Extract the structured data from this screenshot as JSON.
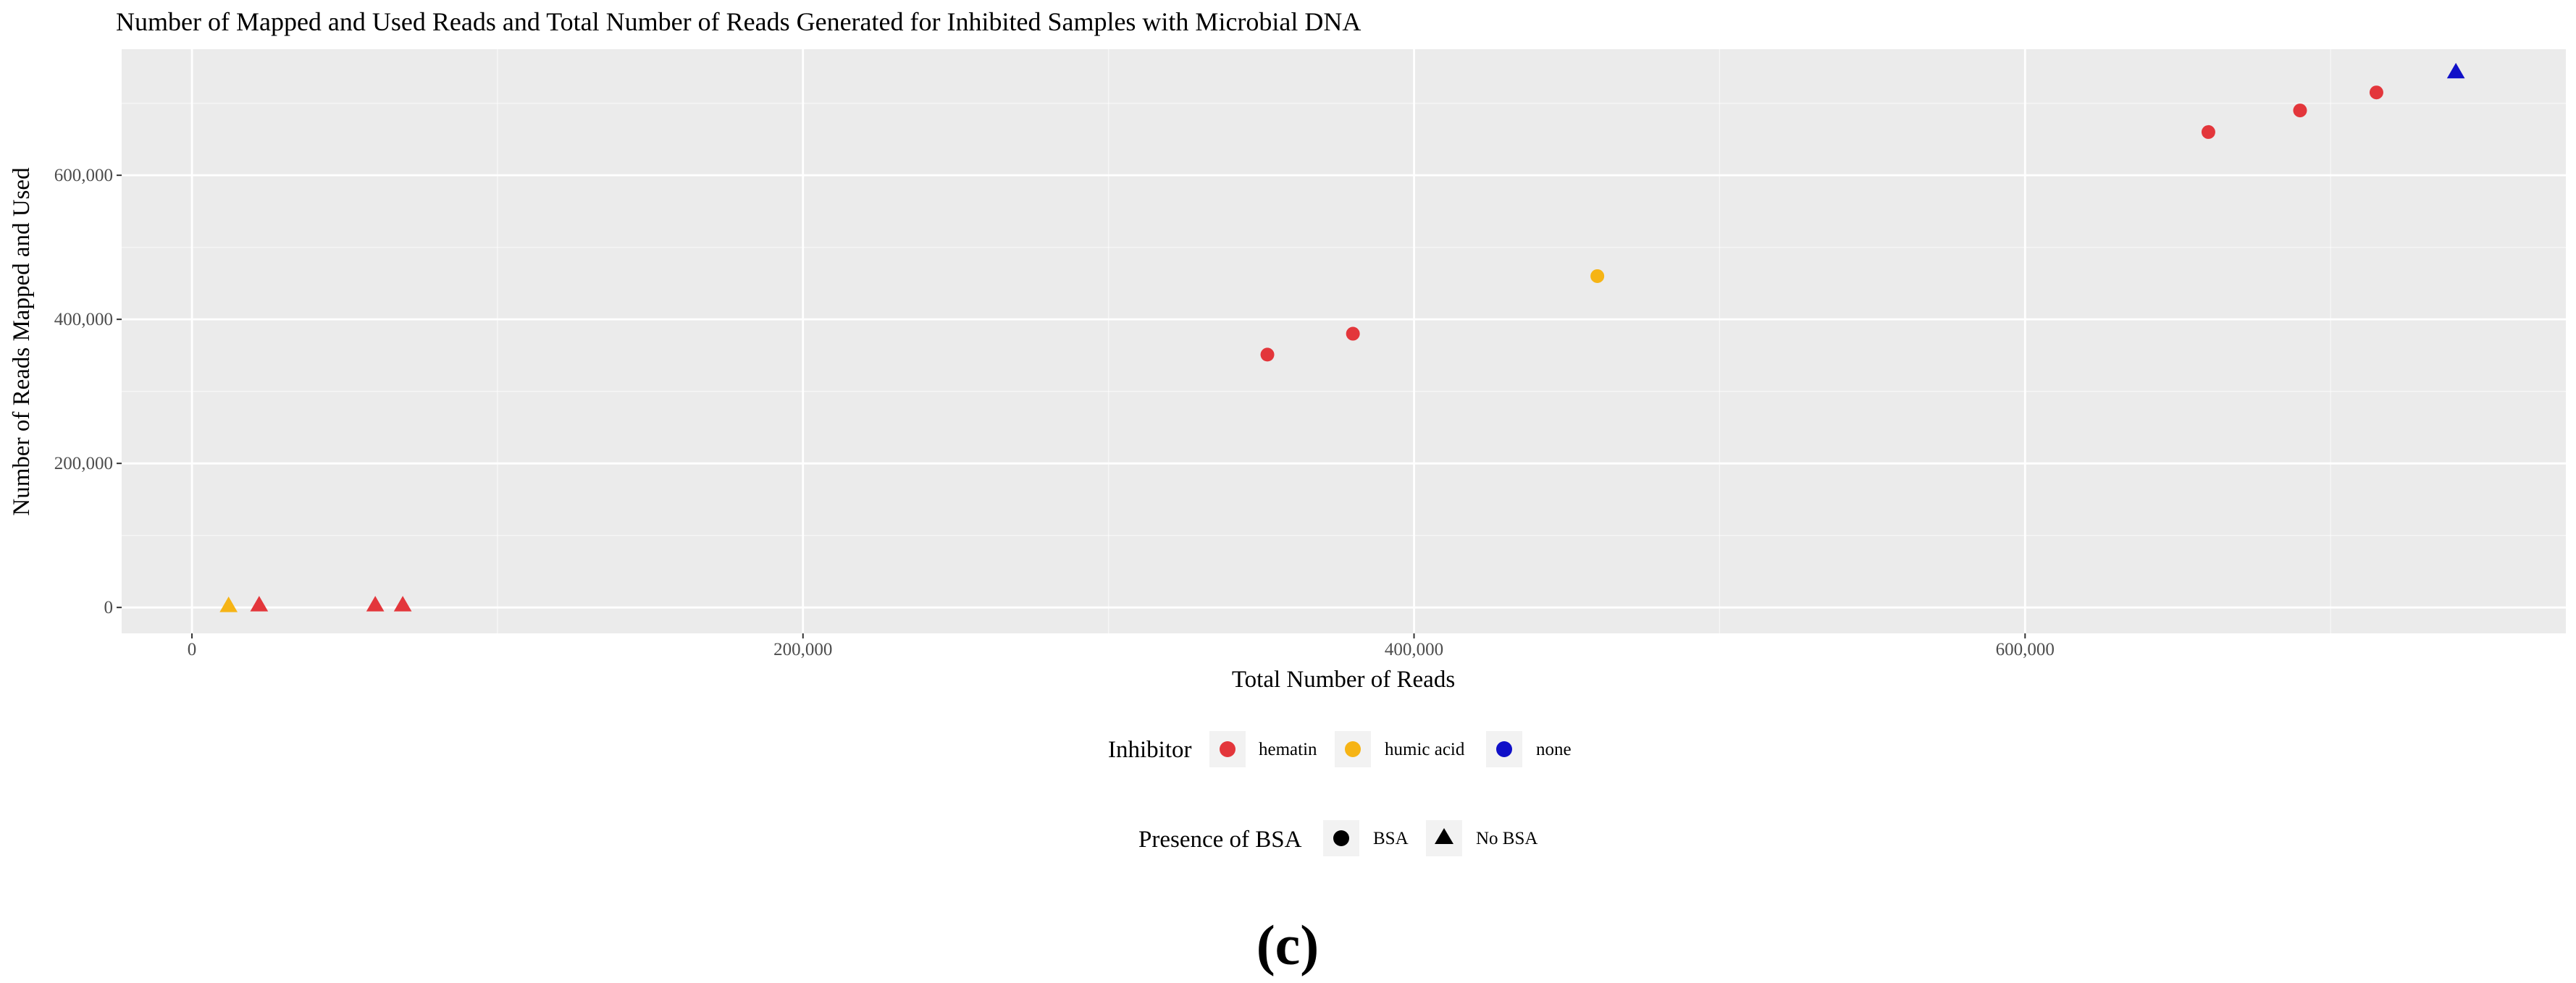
{
  "chart_data": {
    "type": "scatter",
    "title": "Number of Mapped and Used Reads and Total Number of Reads Generated for Inhibited Samples with Microbial DNA",
    "xlabel": "Total Number of Reads",
    "ylabel": "Number of Reads Mapped and Used",
    "xlim": [
      -23000,
      777000
    ],
    "ylim": [
      -36000,
      775000
    ],
    "x_ticks": [
      0,
      200000,
      400000,
      600000
    ],
    "x_tick_labels": [
      "0",
      "200,000",
      "400,000",
      "600,000"
    ],
    "y_ticks": [
      0,
      200000,
      400000,
      600000
    ],
    "y_tick_labels": [
      "0",
      "200,000",
      "400,000",
      "600,000"
    ],
    "x_minor_ticks": [
      100000,
      300000,
      500000,
      700000
    ],
    "y_minor_ticks": [
      100000,
      300000,
      500000,
      700000
    ],
    "grid": true,
    "points": [
      {
        "x": 12000,
        "y": 2000,
        "inhibitor": "humic acid",
        "bsa": "No BSA"
      },
      {
        "x": 22000,
        "y": 3000,
        "inhibitor": "hematin",
        "bsa": "No BSA"
      },
      {
        "x": 60000,
        "y": 3000,
        "inhibitor": "hematin",
        "bsa": "No BSA"
      },
      {
        "x": 69000,
        "y": 3000,
        "inhibitor": "hematin",
        "bsa": "No BSA"
      },
      {
        "x": 352000,
        "y": 351000,
        "inhibitor": "hematin",
        "bsa": "BSA"
      },
      {
        "x": 380000,
        "y": 380000,
        "inhibitor": "hematin",
        "bsa": "BSA"
      },
      {
        "x": 460000,
        "y": 460000,
        "inhibitor": "humic acid",
        "bsa": "BSA"
      },
      {
        "x": 660000,
        "y": 660000,
        "inhibitor": "hematin",
        "bsa": "BSA"
      },
      {
        "x": 690000,
        "y": 690000,
        "inhibitor": "hematin",
        "bsa": "BSA"
      },
      {
        "x": 715000,
        "y": 715000,
        "inhibitor": "hematin",
        "bsa": "BSA"
      },
      {
        "x": 741000,
        "y": 743000,
        "inhibitor": "none",
        "bsa": "No BSA"
      }
    ],
    "legend_inhibitor": {
      "title": "Inhibitor",
      "entries": [
        {
          "label": "hematin",
          "color": "#e3363b"
        },
        {
          "label": "humic acid",
          "color": "#f6b415"
        },
        {
          "label": "none",
          "color": "#1010c8"
        }
      ]
    },
    "legend_bsa": {
      "title": "Presence of BSA",
      "entries": [
        {
          "label": "BSA",
          "shape": "circle"
        },
        {
          "label": "No BSA",
          "shape": "triangle"
        }
      ]
    },
    "panel_label": "(c)",
    "legend_position": "bottom"
  },
  "colors": {
    "panel_bg": "#ebebeb",
    "grid_major": "#ffffff",
    "legend_key_bg": "#f2f2f2"
  }
}
